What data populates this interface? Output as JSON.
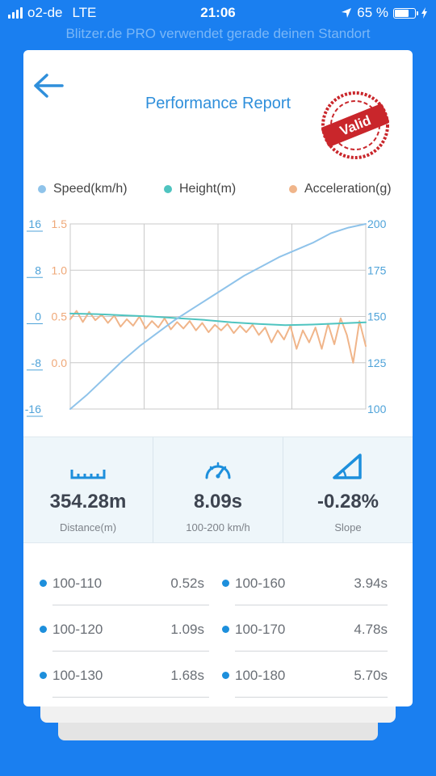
{
  "status_bar": {
    "carrier": "o2-de",
    "network": "LTE",
    "time": "21:06",
    "battery": "65 %",
    "location_banner": "Blitzer.de PRO verwendet gerade deinen Standort"
  },
  "header": {
    "title": "Performance Report",
    "stamp_text": "Valid",
    "back_icon": "back-arrow-icon"
  },
  "colors": {
    "primary": "#1a7ff0",
    "speed": "#8fc3ea",
    "height": "#4fc4c0",
    "acceleration": "#f0b58a",
    "stamp": "#c9262b"
  },
  "chart_data": {
    "type": "line",
    "legend": [
      {
        "name": "Speed(km/h)",
        "color": "#8fc3ea"
      },
      {
        "name": "Height(m)",
        "color": "#4fc4c0"
      },
      {
        "name": "Acceleration(g)",
        "color": "#f0b58a"
      }
    ],
    "axes": {
      "height_ticks": [
        "16",
        "8",
        "0",
        "-8",
        "-16"
      ],
      "acceleration_ticks": [
        "1.5",
        "1.0",
        "0.5",
        "0.0"
      ],
      "speed_ticks": [
        "200",
        "175",
        "150",
        "125",
        "100"
      ],
      "height_range": [
        -16,
        16
      ],
      "acceleration_range": [
        -0.5,
        1.5
      ],
      "speed_range": [
        100,
        200
      ]
    },
    "grid": true,
    "series": [
      {
        "name": "Speed(km/h)",
        "axis": "speed",
        "values": [
          100,
          108,
          117,
          126,
          134,
          141,
          148,
          154,
          160,
          166,
          172,
          177,
          182,
          186,
          190,
          195,
          198,
          200
        ]
      },
      {
        "name": "Height(m)",
        "axis": "height",
        "values": [
          0.5,
          0.4,
          0.2,
          0,
          -0.3,
          -0.6,
          -1,
          -1.3,
          -1.5,
          -1.4,
          -1.2,
          -1
        ]
      },
      {
        "name": "Acceleration(g)",
        "axis": "acceleration",
        "values": [
          0.47,
          0.56,
          0.44,
          0.55,
          0.46,
          0.52,
          0.43,
          0.51,
          0.39,
          0.47,
          0.4,
          0.5,
          0.37,
          0.45,
          0.38,
          0.48,
          0.36,
          0.44,
          0.37,
          0.45,
          0.35,
          0.43,
          0.33,
          0.41,
          0.35,
          0.42,
          0.32,
          0.4,
          0.33,
          0.41,
          0.3,
          0.38,
          0.22,
          0.35,
          0.25,
          0.4,
          0.15,
          0.35,
          0.22,
          0.38,
          0.15,
          0.42,
          0.2,
          0.48,
          0.3,
          0.0,
          0.45,
          0.18
        ]
      }
    ]
  },
  "stats": [
    {
      "icon": "ruler-icon",
      "value": "354.28m",
      "label": "Distance(m)"
    },
    {
      "icon": "speedometer-icon",
      "value": "8.09s",
      "label": "100-200 km/h"
    },
    {
      "icon": "slope-icon",
      "value": "-0.28%",
      "label": "Slope"
    }
  ],
  "splits": [
    {
      "range": "100-110",
      "time": "0.52s"
    },
    {
      "range": "100-160",
      "time": "3.94s"
    },
    {
      "range": "100-120",
      "time": "1.09s"
    },
    {
      "range": "100-170",
      "time": "4.78s"
    },
    {
      "range": "100-130",
      "time": "1.68s"
    },
    {
      "range": "100-180",
      "time": "5.70s"
    }
  ]
}
